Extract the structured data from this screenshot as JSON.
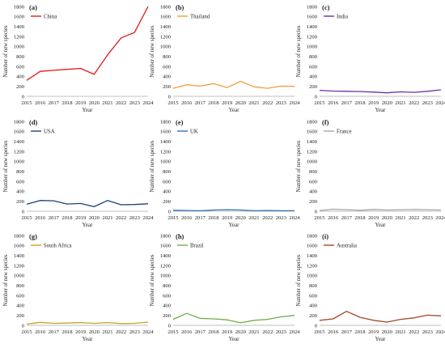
{
  "chart_data": [
    {
      "panel": "(a)",
      "type": "line",
      "legend": "China",
      "color": "#e41a1c",
      "x": [
        "2015",
        "2016",
        "2017",
        "2018",
        "2019",
        "2020",
        "2021",
        "2022",
        "2023",
        "2024"
      ],
      "values": [
        320,
        500,
        520,
        540,
        560,
        440,
        830,
        1170,
        1280,
        1800
      ],
      "ylabel": "Number of new species",
      "xlabel": "Year",
      "yticks": [
        "0",
        "200",
        "400",
        "600",
        "800",
        "1000",
        "1200",
        "1400",
        "1600",
        "1800"
      ],
      "ylim": [
        0,
        1800
      ],
      "grid": false,
      "legend_position": "top-left"
    },
    {
      "panel": "(b)",
      "type": "line",
      "legend": "Thailand",
      "color": "#f39c3c",
      "x": [
        "2015",
        "2016",
        "2017",
        "2018",
        "2019",
        "2020",
        "2021",
        "2022",
        "2023",
        "2024"
      ],
      "values": [
        160,
        230,
        205,
        255,
        175,
        300,
        190,
        160,
        205,
        200
      ],
      "ylabel": "Number of new species",
      "xlabel": "Year",
      "yticks": [
        "0",
        "200",
        "400",
        "600",
        "800",
        "1000",
        "1200",
        "1400",
        "1600",
        "1800"
      ],
      "ylim": [
        0,
        1800
      ],
      "grid": false,
      "legend_position": "top-left"
    },
    {
      "panel": "(c)",
      "type": "line",
      "legend": "India",
      "color": "#7030a0",
      "x": [
        "2015",
        "2016",
        "2017",
        "2018",
        "2019",
        "2020",
        "2021",
        "2022",
        "2023",
        "2024"
      ],
      "values": [
        120,
        105,
        100,
        95,
        85,
        70,
        90,
        80,
        100,
        130
      ],
      "ylabel": "Number of new species",
      "xlabel": "Year",
      "yticks": [
        "0",
        "200",
        "400",
        "600",
        "800",
        "1000",
        "1200",
        "1400",
        "1600",
        "1800"
      ],
      "ylim": [
        0,
        1800
      ],
      "grid": false,
      "legend_position": "top-left"
    },
    {
      "panel": "(d)",
      "type": "line",
      "legend": "USA",
      "color": "#1f3f7a",
      "x": [
        "2015",
        "2016",
        "2017",
        "2018",
        "2019",
        "2020",
        "2021",
        "2022",
        "2023",
        "2024"
      ],
      "values": [
        140,
        215,
        210,
        145,
        155,
        90,
        215,
        130,
        135,
        150
      ],
      "ylabel": "Number of new species",
      "xlabel": "Year",
      "yticks": [
        "0",
        "200",
        "400",
        "600",
        "800",
        "1000",
        "1200",
        "1400",
        "1600",
        "1800"
      ],
      "ylim": [
        0,
        1800
      ],
      "grid": false,
      "legend_position": "top-left"
    },
    {
      "panel": "(e)",
      "type": "line",
      "legend": "UK",
      "color": "#2e75b6",
      "x": [
        "2015",
        "2016",
        "2017",
        "2018",
        "2019",
        "2020",
        "2021",
        "2022",
        "2023",
        "2024"
      ],
      "values": [
        20,
        15,
        10,
        25,
        30,
        25,
        10,
        15,
        10,
        10
      ],
      "ylabel": "Number of new species",
      "xlabel": "Year",
      "yticks": [
        "0",
        "200",
        "400",
        "600",
        "800",
        "1000",
        "1200",
        "1400",
        "1600",
        "1800"
      ],
      "ylim": [
        0,
        1800
      ],
      "grid": false,
      "legend_position": "top-left"
    },
    {
      "panel": "(f)",
      "type": "line",
      "legend": "France",
      "color": "#a6a6a6",
      "x": [
        "2015",
        "2016",
        "2017",
        "2018",
        "2019",
        "2020",
        "2021",
        "2022",
        "2023",
        "2024"
      ],
      "values": [
        15,
        40,
        30,
        20,
        35,
        25,
        30,
        35,
        30,
        25
      ],
      "ylabel": "Number of new species",
      "xlabel": "Year",
      "yticks": [
        "0",
        "200",
        "400",
        "600",
        "800",
        "1000",
        "1200",
        "1400",
        "1600",
        "1800"
      ],
      "ylim": [
        0,
        1800
      ],
      "grid": false,
      "legend_position": "top-left"
    },
    {
      "panel": "(g)",
      "type": "line",
      "legend": "South Africa",
      "color": "#c9a227",
      "x": [
        "2015",
        "2016",
        "2017",
        "2018",
        "2019",
        "2020",
        "2021",
        "2022",
        "2023",
        "2024"
      ],
      "values": [
        25,
        60,
        40,
        45,
        55,
        40,
        55,
        35,
        40,
        65
      ],
      "ylabel": "Number of new species",
      "xlabel": "Year",
      "yticks": [
        "0",
        "200",
        "400",
        "600",
        "800",
        "1000",
        "1200",
        "1400",
        "1600",
        "1800"
      ],
      "ylim": [
        0,
        1800
      ],
      "grid": false,
      "legend_position": "top-left"
    },
    {
      "panel": "(h)",
      "type": "line",
      "legend": "Brazil",
      "color": "#70ad47",
      "x": [
        "2015",
        "2016",
        "2017",
        "2018",
        "2019",
        "2020",
        "2021",
        "2022",
        "2023",
        "2024"
      ],
      "values": [
        120,
        240,
        140,
        130,
        110,
        50,
        100,
        120,
        170,
        200
      ],
      "ylabel": "Number of new species",
      "xlabel": "Year",
      "yticks": [
        "0",
        "200",
        "400",
        "600",
        "800",
        "1000",
        "1200",
        "1400",
        "1600",
        "1800"
      ],
      "ylim": [
        0,
        1800
      ],
      "grid": false,
      "legend_position": "top-left"
    },
    {
      "panel": "(i)",
      "type": "line",
      "legend": "Australia",
      "color": "#a0472a",
      "x": [
        "2015",
        "2016",
        "2017",
        "2018",
        "2019",
        "2020",
        "2021",
        "2022",
        "2023",
        "2024"
      ],
      "values": [
        100,
        130,
        280,
        160,
        100,
        65,
        120,
        150,
        205,
        190
      ],
      "ylabel": "Number of new species",
      "xlabel": "Year",
      "yticks": [
        "0",
        "200",
        "400",
        "600",
        "800",
        "1000",
        "1200",
        "1400",
        "1600",
        "1800"
      ],
      "ylim": [
        0,
        1800
      ],
      "grid": false,
      "legend_position": "top-left"
    }
  ]
}
